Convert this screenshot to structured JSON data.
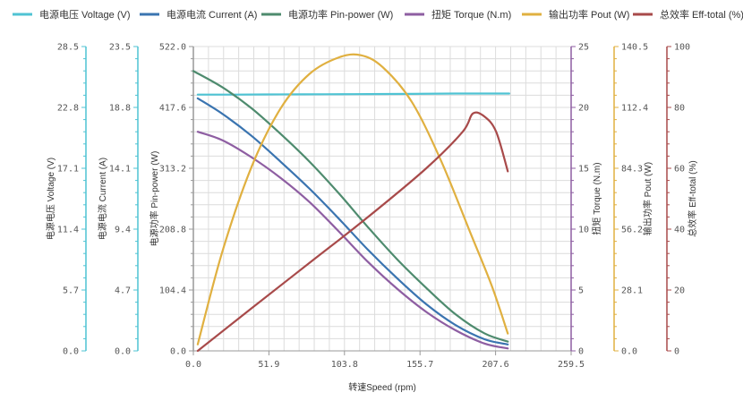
{
  "chart_data": {
    "type": "line",
    "legend_position": "top",
    "grid": true,
    "xlabel": "转速Speed (rpm)",
    "xlim": [
      0,
      259.5
    ],
    "xticks": [
      "0.0",
      "51.9",
      "103.8",
      "155.7",
      "207.6",
      "259.5"
    ],
    "axes": [
      {
        "id": "voltage",
        "label": "电源电压 Voltage (V)",
        "min": 0,
        "max": 28.5,
        "ticks": [
          "0.0",
          "5.7",
          "11.4",
          "17.1",
          "22.8",
          "28.5"
        ],
        "color": "#4fc3d3"
      },
      {
        "id": "current",
        "label": "电源电流 Current (A)",
        "min": 0,
        "max": 23.5,
        "ticks": [
          "0.0",
          "4.7",
          "9.4",
          "14.1",
          "18.8",
          "23.5"
        ],
        "color": "#4fc3d3"
      },
      {
        "id": "pin",
        "label": "电源功率 Pin-power (W)",
        "min": 0,
        "max": 522.0,
        "ticks": [
          "0.0",
          "104.4",
          "208.8",
          "313.2",
          "417.6",
          "522.0"
        ],
        "color": "#999999"
      },
      {
        "id": "torque",
        "label": "扭矩 Torque (N.m)",
        "min": 0,
        "max": 25,
        "ticks": [
          "0",
          "5",
          "10",
          "15",
          "20",
          "25"
        ],
        "color": "#8e5ea2"
      },
      {
        "id": "pout",
        "label": "输出功率 Pout (W)",
        "min": 0,
        "max": 140.5,
        "ticks": [
          "0.0",
          "28.1",
          "56.2",
          "84.3",
          "112.4",
          "140.5"
        ],
        "color": "#e0b040"
      },
      {
        "id": "eff",
        "label": "总效率 Eff-total (%)",
        "min": 0,
        "max": 100,
        "ticks": [
          "0",
          "20",
          "40",
          "60",
          "80",
          "100"
        ],
        "color": "#a84a4a"
      }
    ],
    "series": [
      {
        "name": "电源电压 Voltage (V)",
        "axis": "voltage",
        "color": "#4fc3d3",
        "x": [
          3,
          30,
          60,
          90,
          120,
          150,
          180,
          217
        ],
        "y": [
          24.0,
          24.0,
          24.02,
          24.03,
          24.05,
          24.07,
          24.1,
          24.1
        ]
      },
      {
        "name": "电源电流 Current (A)",
        "axis": "current",
        "color": "#3a74b0",
        "x": [
          3,
          20,
          40,
          60,
          80,
          100,
          120,
          140,
          160,
          180,
          200,
          216
        ],
        "y": [
          19.5,
          18.3,
          16.6,
          14.6,
          12.5,
          10.2,
          7.8,
          5.6,
          3.6,
          2.0,
          0.9,
          0.5
        ]
      },
      {
        "name": "电源功率 Pin-power (W)",
        "axis": "pin",
        "color": "#4e8b6e",
        "x": [
          0,
          20,
          40,
          60,
          80,
          100,
          120,
          140,
          160,
          180,
          200,
          216
        ],
        "y": [
          480,
          452,
          416,
          372,
          324,
          270,
          212,
          157,
          108,
          63,
          30,
          16
        ]
      },
      {
        "name": "扭矩 Torque (N.m)",
        "axis": "torque",
        "color": "#8e5ea2",
        "x": [
          3,
          20,
          40,
          60,
          80,
          100,
          120,
          140,
          160,
          180,
          200,
          216
        ],
        "y": [
          18.0,
          17.3,
          15.9,
          14.2,
          12.2,
          9.8,
          7.3,
          5.1,
          3.2,
          1.7,
          0.6,
          0.2
        ]
      },
      {
        "name": "输出功率 Pout (W)",
        "axis": "pout",
        "color": "#e0b040",
        "x": [
          3,
          20,
          40,
          60,
          80,
          100,
          115,
          130,
          150,
          170,
          190,
          205,
          216
        ],
        "y": [
          3,
          46,
          85,
          112,
          128,
          135.5,
          136.5,
          131,
          115,
          88,
          55,
          30,
          8
        ]
      },
      {
        "name": "总效率 Eff-total (%)",
        "axis": "eff",
        "color": "#a84a4a",
        "x": [
          3,
          40,
          80,
          120,
          160,
          185,
          192,
          200,
          208,
          216
        ],
        "y": [
          0,
          14,
          29,
          44,
          60,
          72,
          78,
          77,
          72,
          59
        ]
      }
    ]
  }
}
